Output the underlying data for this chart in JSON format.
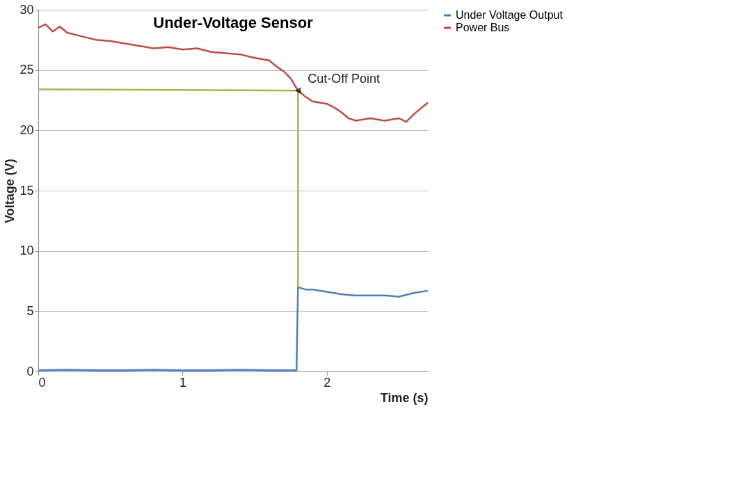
{
  "chart_data": {
    "type": "line",
    "title": "Under-Voltage Sensor",
    "xlabel": "Time (s)",
    "ylabel": "Voltage (V)",
    "xlim": [
      0,
      2.7
    ],
    "xticks": [
      0,
      1,
      2
    ],
    "ylim": [
      0,
      30
    ],
    "yticks": [
      0,
      5,
      10,
      15,
      20,
      25,
      30
    ],
    "grid": "y",
    "legend": "right",
    "line_style": "solid",
    "marker": "none",
    "series": [
      {
        "name": "Under Voltage Output",
        "color": "#4a7ebb",
        "x": [
          0,
          0.2,
          0.4,
          0.6,
          0.8,
          1.0,
          1.2,
          1.4,
          1.6,
          1.79,
          1.8,
          1.85,
          1.9,
          2.0,
          2.1,
          2.2,
          2.3,
          2.4,
          2.5,
          2.6,
          2.7
        ],
        "values": [
          0.1,
          0.15,
          0.1,
          0.1,
          0.15,
          0.1,
          0.1,
          0.15,
          0.1,
          0.1,
          7.0,
          6.8,
          6.8,
          6.6,
          6.4,
          6.3,
          6.3,
          6.3,
          6.2,
          6.5,
          6.7
        ]
      },
      {
        "name": "Power Bus",
        "color": "#be4b48",
        "x": [
          0,
          0.05,
          0.1,
          0.15,
          0.2,
          0.3,
          0.4,
          0.5,
          0.6,
          0.7,
          0.8,
          0.9,
          1.0,
          1.1,
          1.2,
          1.3,
          1.4,
          1.5,
          1.6,
          1.65,
          1.7,
          1.75,
          1.8,
          1.85,
          1.9,
          2.0,
          2.05,
          2.1,
          2.15,
          2.2,
          2.3,
          2.4,
          2.5,
          2.55,
          2.6,
          2.65,
          2.7
        ],
        "values": [
          28.5,
          28.8,
          28.2,
          28.6,
          28.1,
          27.8,
          27.5,
          27.4,
          27.2,
          27.0,
          26.8,
          26.9,
          26.7,
          26.8,
          26.5,
          26.4,
          26.3,
          26.0,
          25.8,
          25.3,
          24.9,
          24.3,
          23.3,
          22.8,
          22.4,
          22.2,
          21.9,
          21.5,
          21.0,
          20.8,
          21.0,
          20.8,
          21.0,
          20.7,
          21.3,
          21.8,
          22.3
        ]
      },
      {
        "color": "#98b954",
        "x": [
          0,
          1.8,
          1.8
        ],
        "values": [
          23.4,
          23.3,
          7.0
        ]
      }
    ],
    "annotations": [
      {
        "text": "Cut-Off Point",
        "x": 1.8,
        "y": 23.3
      }
    ]
  }
}
